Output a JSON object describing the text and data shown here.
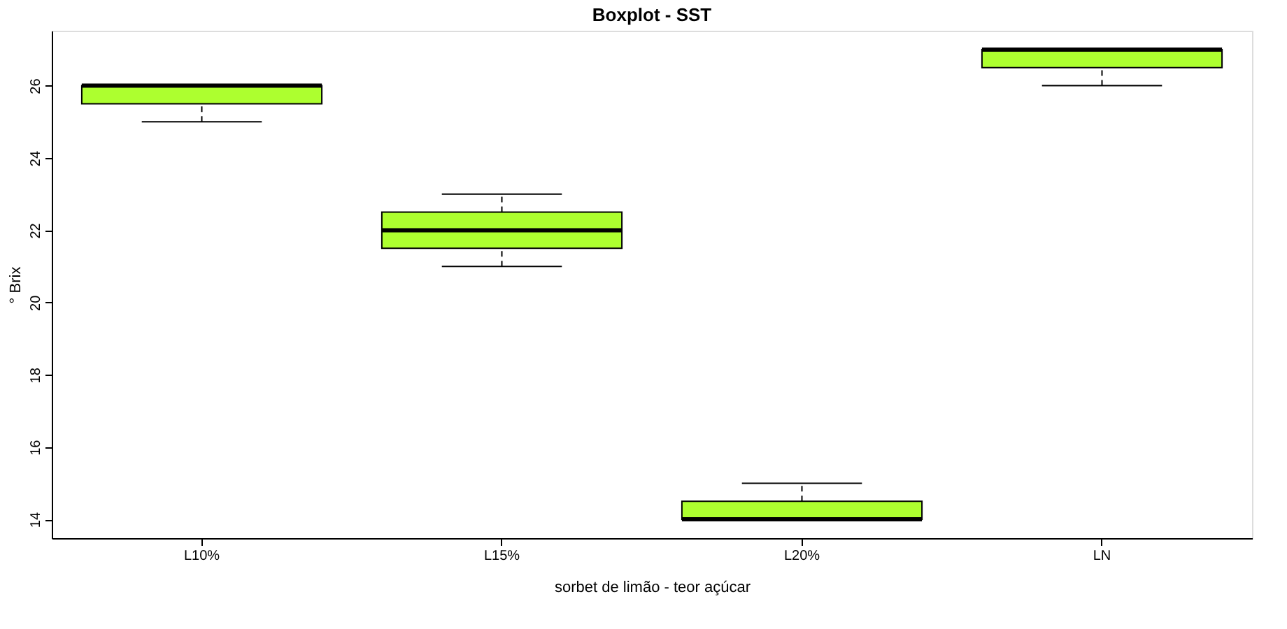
{
  "chart_data": {
    "type": "box",
    "title": "Boxplot - SST",
    "xlabel": "sorbet de limão - teor açúcar",
    "ylabel": "° Brix",
    "categories": [
      "L10%",
      "L15%",
      "L20%",
      "LN"
    ],
    "boxes": [
      {
        "low": 25,
        "q1": 25.5,
        "median": 26,
        "q3": 26,
        "high": 26
      },
      {
        "low": 21,
        "q1": 21.5,
        "median": 22,
        "q3": 22.5,
        "high": 23
      },
      {
        "low": 14,
        "q1": 14,
        "median": 14,
        "q3": 14.5,
        "high": 15
      },
      {
        "low": 26,
        "q1": 26.5,
        "median": 27,
        "q3": 27,
        "high": 27
      }
    ],
    "color": "#adff2f",
    "ylim": [
      13.48,
      27.52
    ],
    "yticks": [
      14,
      16,
      18,
      20,
      22,
      24,
      26
    ],
    "grid": false
  }
}
